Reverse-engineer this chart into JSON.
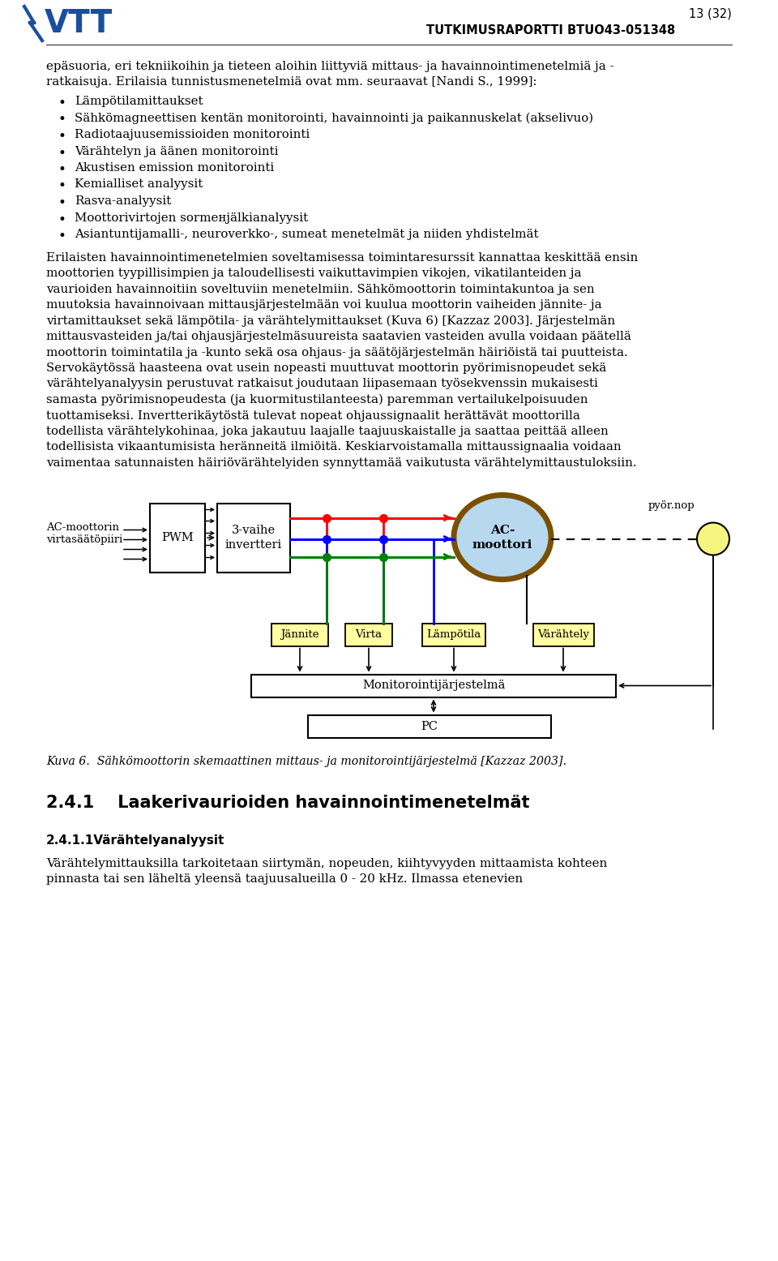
{
  "page_number": "13 (32)",
  "report_id": "TUTKIMUSRAPORTTI BTUO43-051348",
  "bg_color": "#ffffff",
  "text_color": "#000000",
  "intro_line1": "epäsuoria, eri tekniikoihin ja tieteen aloihin liittyviä mittaus- ja havainnointimenetelmiä ja -",
  "intro_line2": "ratkaisuja. Erilaisia tunnistusmenetelmiä ovat mm. seuraavat [Nandi S., 1999]:",
  "bullet_items": [
    "Lämpötilamittaukset",
    "Sähkömagneettisen kentän monitorointi, havainnointi ja paikannuskelat (akselivuo)",
    "Radiotaajuusemissioiden monitorointi",
    "Värähtelyn ja äänen monitorointi",
    "Akustisen emission monitorointi",
    "Kemialliset analyysit",
    "Rasva-analyysit",
    "Moottorivirtojen sormенjälkianalyysit",
    "Asiantuntijamalli-, neuroverkko-, sumeat menetelmät ja niiden yhdistelmät"
  ],
  "para1_lines": [
    "Erilaisten havainnointimenetelmien soveltamisessa toimintaresurssit kannattaa keskittää ensin",
    "moottorien tyypillisimpien ja taloudellisesti vaikuttavimpien vikojen, vikatilanteiden ja",
    "vaurioiden havainnoitiin soveltuviin menetelmiin. Sähkömoottorin toimintakuntoa ja sen",
    "muutoksia havainnoivaan mittausjärjestelmään voi kuulua moottorin vaiheiden jännite- ja",
    "virtamittaukset sekä lämpötila- ja värähtelymittaukset (Kuva 6) [Kazzaz 2003]. Järjestelmän",
    "mittausvasteiden ja/tai ohjausjärjestelmäsuureista saatavien vasteiden avulla voidaan päätellä",
    "moottorin toimintatila ja -kunto sekä osa ohjaus- ja säätöjärjestelmän häiriöistä tai puutteista.",
    "Servokäytössä haasteena ovat usein nopeasti muuttuvat moottorin pyörimisnopeudet sekä",
    "värähtelyanalyysin perustuvat ratkaisut joudutaan liipasemaan työsekvenssin mukaisesti",
    "samasta pyörimisnopeudesta (ja kuormitustilanteesta) paremman vertailukelpoisuuden",
    "tuottamiseksi. Invertterikäytöstä tulevat nopeat ohjaussignaalit herättävät moottorilla",
    "todellista värähtelykohinaa, joka jakautuu laajalle taajuuskaistalle ja saattaa peittää alleen",
    "todellisista vikaantumisista heränneitä ilmiöitä. Keskiarvoistamalla mittaussignaalia voidaan",
    "vaimentaa satunnaisten häiriövärähtelyiden synnyttamää vaikutusta värähtelymittaustuloksiin."
  ],
  "caption": "Kuva 6.  Sähkömoottorin skemaattinen mittaus- ja monitorointijärjestelmä [Kazzaz 2003].",
  "section_header": "2.4.1    Laakerivaurioiden havainnointimenetelmät",
  "subsection_header": "2.4.1.1Värähtelyanalyysit",
  "last_para_lines": [
    "Värähtelymittauksilla tarkoitetaan siirtymän, nopeuden, kiihtyvyyden mittaamista kohteen",
    "pinnasta tai sen läheltä yleensä taajuusalueilla 0 - 20 kHz. Ilmassa etenevien"
  ]
}
